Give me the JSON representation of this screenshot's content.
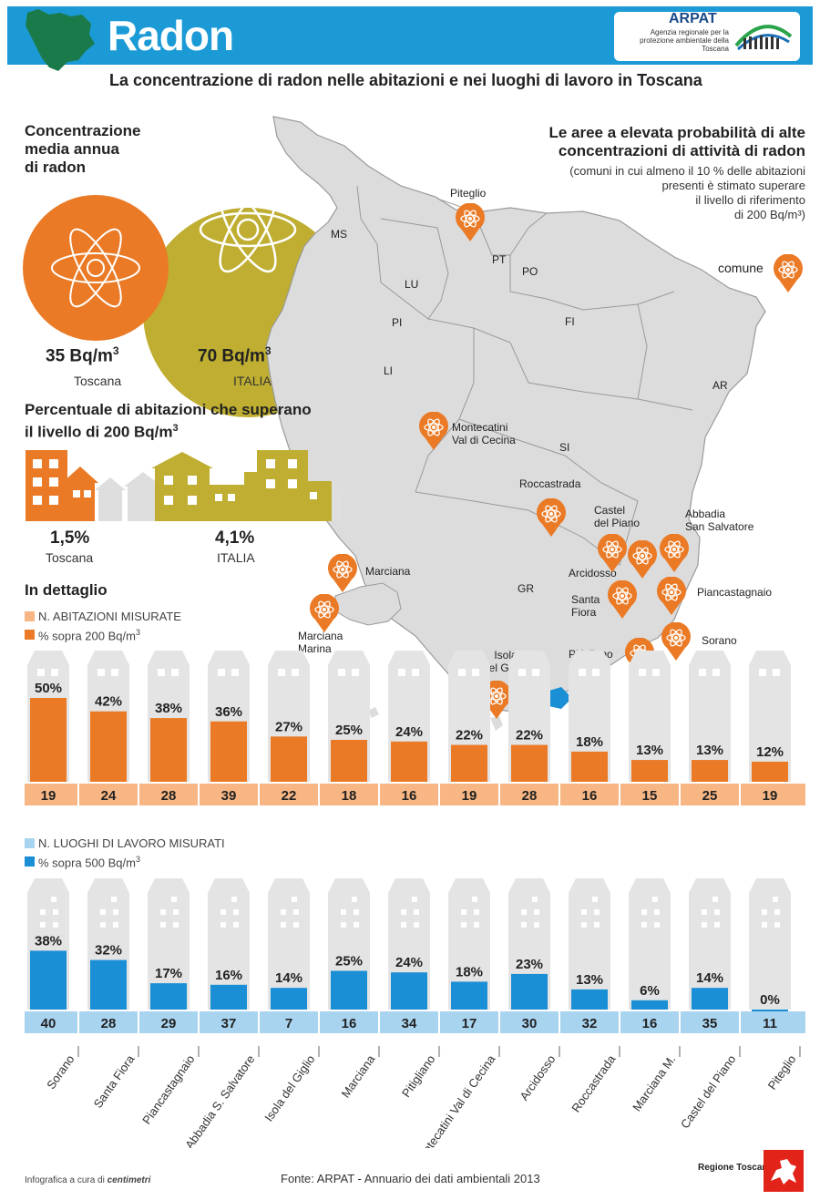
{
  "header": {
    "title": "Radon",
    "subtitle": "La concentrazione di radon nelle abitazioni e nei luoghi di lavoro in Toscana"
  },
  "logo": {
    "name": "ARPAT",
    "tagline": "Agenzia regionale per la protezione ambientale della Toscana"
  },
  "concentration": {
    "heading": [
      "Concentrazione",
      "media annua",
      "di radon"
    ],
    "toscana": {
      "value": "35 Bq/m",
      "sup": "3",
      "label": "Toscana"
    },
    "italia": {
      "value": "70 Bq/m",
      "sup": "3",
      "label": "ITALIA"
    }
  },
  "percent_homes": {
    "heading_1": "Percentuale di abitazioni che superano",
    "heading_2": "il livello di 200 Bq/m",
    "heading_sup": "3",
    "toscana": {
      "value": "1,5%",
      "label": "Toscana"
    },
    "italia": {
      "value": "4,1%",
      "label": "ITALIA"
    }
  },
  "map_info": {
    "heading": [
      "Le aree a elevata probabilità di alte",
      "concentrazioni di attività di radon"
    ],
    "desc": [
      "(comuni in cui almeno il 10 % delle abitazioni",
      "presenti è stimato superare",
      "il livello di riferimento",
      "di 200 Bq/m³)"
    ],
    "legend_label": "comune",
    "provinces": [
      "MS",
      "LU",
      "PT",
      "PO",
      "PI",
      "FI",
      "LI",
      "AR",
      "SI",
      "GR"
    ],
    "comuni": [
      "Piteglio",
      "Montecatini",
      "Val di Cecina",
      "Roccastrada",
      "Castel",
      "del Piano",
      "Abbadia",
      "San Salvatore",
      "Arcidosso",
      "Piancastagnaio",
      "Santa",
      "Fiora",
      "Sorano",
      "Pitigliano",
      "Marciana",
      "Marciana",
      "Marina",
      "Isola",
      "del Giglio"
    ]
  },
  "detail": {
    "heading": "In dettaglio",
    "legend_homes": "N. ABITAZIONI MISURATE",
    "legend_homes_pct": "% sopra 200 Bq/m",
    "legend_work": "N. LUOGHI DI LAVORO MISURATI",
    "legend_work_pct": "% sopra 500 Bq/m",
    "sup": "3"
  },
  "colors": {
    "header_blue": "#1b9ad6",
    "orange": "#ea7a25",
    "light_orange": "#f7b683",
    "olive": "#bfae31",
    "blue": "#1b8fd6",
    "light_blue": "#a9d4f0",
    "map_gray": "#dcdcdc"
  },
  "chart_data": [
    {
      "type": "bar",
      "categories": [
        "Sorano",
        "Santa Fiora",
        "Piancastagnaio",
        "Abbadia S. Salvatore",
        "Isola del Giglio",
        "Marciana",
        "Pitigliano",
        "Montecatini Val di Cecina",
        "Arcidosso",
        "Roccastrada",
        "Marciana M.",
        "Castel del Piano",
        "Piteglio"
      ],
      "series": [
        {
          "name": "% sopra 200 Bq/m3",
          "values": [
            50,
            42,
            38,
            36,
            27,
            25,
            24,
            22,
            22,
            18,
            13,
            13,
            12
          ]
        },
        {
          "name": "N. ABITAZIONI MISURATE",
          "values": [
            19,
            24,
            28,
            39,
            22,
            18,
            16,
            19,
            28,
            16,
            15,
            25,
            19
          ]
        }
      ],
      "ylim": [
        0,
        100
      ]
    },
    {
      "type": "bar",
      "categories": [
        "Sorano",
        "Santa Fiora",
        "Piancastagnaio",
        "Abbadia S. Salvatore",
        "Isola del Giglio",
        "Marciana",
        "Pitigliano",
        "Montecatini Val di Cecina",
        "Arcidosso",
        "Roccastrada",
        "Marciana M.",
        "Castel del Piano",
        "Piteglio"
      ],
      "series": [
        {
          "name": "% sopra 500 Bq/m3",
          "values": [
            38,
            32,
            17,
            16,
            14,
            25,
            24,
            18,
            23,
            13,
            6,
            14,
            0
          ]
        },
        {
          "name": "N. LUOGHI DI LAVORO MISURATI",
          "values": [
            40,
            28,
            29,
            37,
            7,
            16,
            34,
            17,
            30,
            32,
            16,
            35,
            11
          ]
        }
      ],
      "ylim": [
        0,
        100
      ]
    }
  ],
  "footer": {
    "credit": "Infografica a cura di",
    "credit_brand": "centimetri",
    "source": "Fonte: ARPAT - Annuario dei dati ambientali 2013",
    "region": "Regione Toscana"
  }
}
